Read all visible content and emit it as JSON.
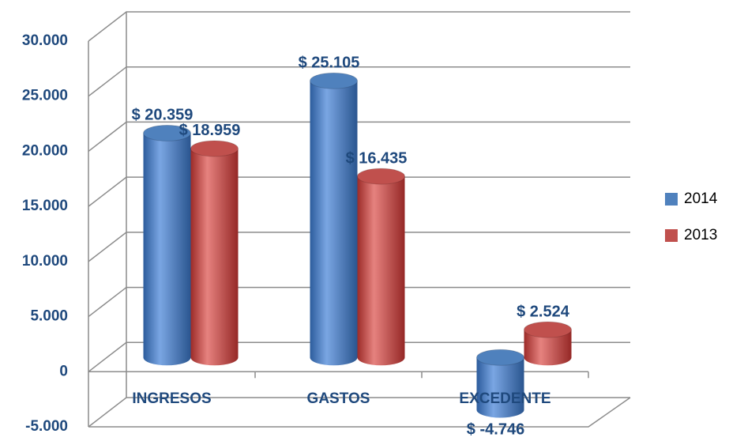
{
  "chart_data": {
    "type": "bar3d",
    "categories": [
      "INGRESOS",
      "GASTOS",
      "EXCEDENTE"
    ],
    "series": [
      {
        "name": "2014",
        "color": "#4f81bd",
        "values": [
          20359,
          25105,
          -4746
        ],
        "value_labels": [
          "$ 20.359",
          "$ 25.105",
          "$ -4.746"
        ]
      },
      {
        "name": "2013",
        "color": "#c0504d",
        "values": [
          18959,
          16435,
          2524
        ],
        "value_labels": [
          "$ 18.959",
          "$ 16.435",
          "$ 2.524"
        ]
      }
    ],
    "ylim": [
      -5000,
      30000
    ],
    "yticks": [
      {
        "value": -5000,
        "label": "-5.000"
      },
      0,
      {
        "value": 5000,
        "label": "5.000"
      },
      {
        "value": 10000,
        "label": "10.000"
      },
      {
        "value": 15000,
        "label": "15.000"
      },
      {
        "value": 20000,
        "label": "20.000"
      },
      {
        "value": 25000,
        "label": "25.000"
      },
      {
        "value": 30000,
        "label": "30.000"
      }
    ],
    "grid": true,
    "legend": "right"
  }
}
